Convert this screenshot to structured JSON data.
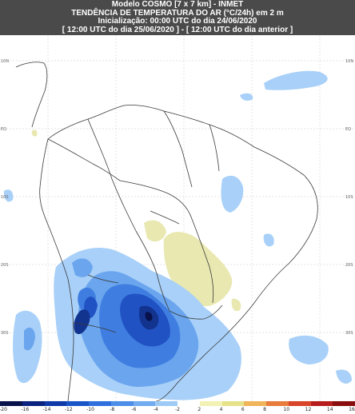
{
  "header": {
    "line1": "Modelo COSMO [7 x 7 km] - INMET",
    "line2": "TENDÊNCIA DE TEMPERATURA DO AR (°C/24h) em 2 m",
    "line3": "Inicialização: 00:00 UTC do dia 24/06/2020",
    "line4": "[ 12:00 UTC do dia 25/06/2020 ] - [ 12:00 UTC do dia anterior ]"
  },
  "colorbar": {
    "labels": [
      "-20",
      "-16",
      "-14",
      "-12",
      "-10",
      "-8",
      "-6",
      "-4",
      "-2",
      "2",
      "4",
      "6",
      "8",
      "10",
      "12",
      "14",
      "16"
    ],
    "colors": [
      "#08114a",
      "#0a2380",
      "#0f3aa8",
      "#1a55c8",
      "#2f70de",
      "#4d8ee8",
      "#72abf0",
      "#9ecaf6",
      "#ffffff",
      "#f2f2b4",
      "#e6e28a",
      "#f0b45a",
      "#e87c3c",
      "#d8452a",
      "#b81d1d",
      "#8a0e0e"
    ]
  },
  "axes": {
    "lat_labels_left": [
      "10N",
      "EQ",
      "10S",
      "20S",
      "30S"
    ],
    "lat_labels_right": [
      "10N",
      "EQ",
      "10S",
      "20S",
      "30S"
    ]
  },
  "map": {
    "ocean_color": "#ffffff",
    "border_color": "#3a3a3a",
    "cooling_colors": [
      "#a8d0f8",
      "#6aa5ee",
      "#3f7ee0",
      "#2152c4",
      "#12338e"
    ],
    "warming_color": "#e8e7ad"
  }
}
